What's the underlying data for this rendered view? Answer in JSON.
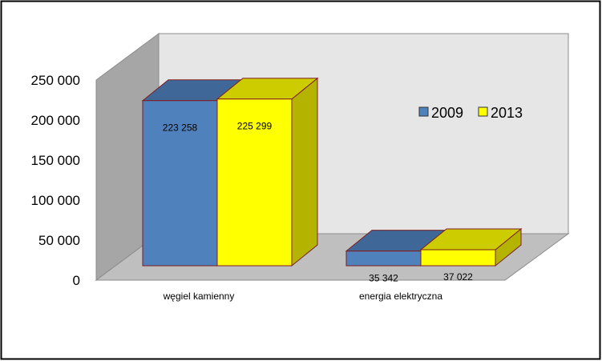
{
  "chart_data": {
    "type": "bar",
    "categories": [
      "węgiel kamienny",
      "energia elektryczna"
    ],
    "series": [
      {
        "name": "2009",
        "values": [
          223258,
          35342
        ],
        "labels": [
          "223 258",
          "35 342"
        ],
        "color": "#4f81bd"
      },
      {
        "name": "2013",
        "values": [
          225299,
          37022
        ],
        "labels": [
          "225 299",
          "37 022"
        ],
        "color": "#ffff00"
      }
    ],
    "title": "",
    "xlabel": "",
    "ylabel": "",
    "ylim": [
      0,
      250000
    ],
    "yticks": [
      0,
      50000,
      100000,
      150000,
      200000,
      250000
    ],
    "ytick_labels": [
      "0",
      "50 000",
      "100 000",
      "150 000",
      "200 000",
      "250 000"
    ],
    "grid": false,
    "legend_position": "right",
    "style": "3d-clustered-bar",
    "wall_color": "#e6e6e6",
    "floor_color": "#bfbfbf",
    "side_wall_color": "#a6a6a6"
  }
}
